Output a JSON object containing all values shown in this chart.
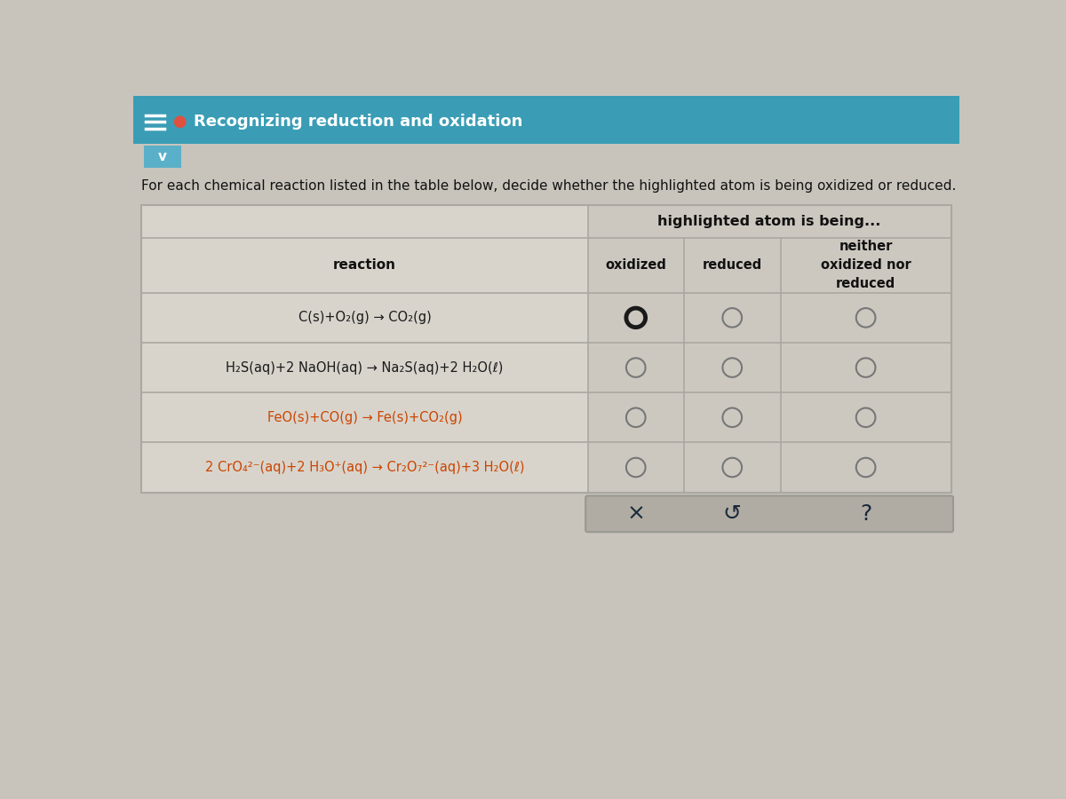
{
  "title": "Recognizing reduction and oxidation",
  "subtitle": "For each chemical reaction listed in the table below, decide whether the highlighted atom is being oxidized or reduced.",
  "header_bg": "#3a9db5",
  "body_bg": "#c8c4bc",
  "table_bg_left": "#d8d4cc",
  "table_bg_right": "#ccc8c0",
  "col_header": "highlighted atom is being...",
  "reaction_header": "reaction",
  "col_headers": [
    "oxidized",
    "reduced",
    "neither\noxidized nor\nreduced"
  ],
  "reaction_display": [
    "C(s)+O₂(g) → CO₂(g)",
    "H₂S(aq)+2 NaOH(aq) → Na₂S(aq)+2 H₂O(ℓ)",
    "FeO(s)+CO(g) → Fe(s)+CO₂(g)",
    "2 CrO₄²⁻(aq)+2 H₃O⁺(aq) → Cr₂O₇²⁻(aq)+3 H₂O(ℓ)"
  ],
  "reaction_colors": [
    "#1a1a1a",
    "#1a1a1a",
    "#cc4400",
    "#cc4400"
  ],
  "highlighted_atoms": [
    "C",
    "S",
    "Fe",
    "Cr"
  ],
  "selected": [
    0,
    -1,
    -1,
    -1
  ],
  "circle_color_empty": "#888888",
  "circle_color_selected_outer": "#222222",
  "bottom_bar_bg": "#b0aca4",
  "bottom_icons": [
    "×",
    "↺",
    "?"
  ],
  "line_color": "#aaa8a0",
  "text_color": "#111111",
  "header_text_color": "#ffffff"
}
